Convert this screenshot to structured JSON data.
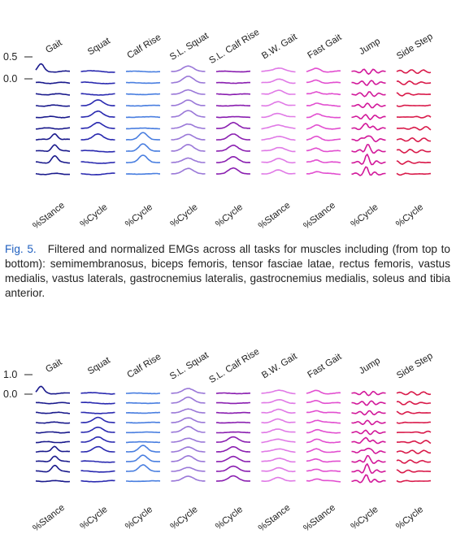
{
  "caption": {
    "label": "Fig. 5.",
    "text": "Filtered and normalized EMGs across all tasks for muscles including (from top to bottom): semimembranosus, biceps femoris, tensor fasciae latae, rectus femoris, vastus medialis, vastus laterals, gastrocnemius lateralis, gastrocnemius medialis, soleus and tibia anterior."
  },
  "chart_data": [
    {
      "type": "line",
      "panel": "top",
      "y_scale_labels": [
        "0.5",
        "0.0"
      ],
      "row_count": 10,
      "columns": [
        {
          "task": "Gait",
          "xlabel": "%Stance",
          "color": "#1a1a8c"
        },
        {
          "task": "Squat",
          "xlabel": "%Cycle",
          "color": "#2a2ab0"
        },
        {
          "task": "Calf Rise",
          "xlabel": "%Cycle",
          "color": "#4a7fe0"
        },
        {
          "task": "S.L. Squat",
          "xlabel": "%Cycle",
          "color": "#9a78d8"
        },
        {
          "task": "S.L. Calf Rise",
          "xlabel": "%Cycle",
          "color": "#8a1fb0"
        },
        {
          "task": "B.W. Gait",
          "xlabel": "%Stance",
          "color": "#e07ae6"
        },
        {
          "task": "Fast Gait",
          "xlabel": "%Stance",
          "color": "#e24fd0"
        },
        {
          "task": "Jump",
          "xlabel": "%Cycle",
          "color": "#d2189a"
        },
        {
          "task": "Side Step",
          "xlabel": "%Cycle",
          "color": "#d91a4a"
        }
      ]
    },
    {
      "type": "line",
      "panel": "bottom",
      "y_scale_labels": [
        "1.0",
        "0.0"
      ],
      "row_count": 10,
      "columns": [
        {
          "task": "Gait",
          "xlabel": "%Stance",
          "color": "#1a1a8c"
        },
        {
          "task": "Squat",
          "xlabel": "%Cycle",
          "color": "#2a2ab0"
        },
        {
          "task": "Calf Rise",
          "xlabel": "%Cycle",
          "color": "#4a7fe0"
        },
        {
          "task": "S.L. Squat",
          "xlabel": "%Cycle",
          "color": "#9a78d8"
        },
        {
          "task": "S.L. Calf Rise",
          "xlabel": "%Cycle",
          "color": "#8a1fb0"
        },
        {
          "task": "B.W. Gait",
          "xlabel": "%Stance",
          "color": "#e07ae6"
        },
        {
          "task": "Fast Gait",
          "xlabel": "%Stance",
          "color": "#e24fd0"
        },
        {
          "task": "Jump",
          "xlabel": "%Cycle",
          "color": "#d2189a"
        },
        {
          "task": "Side Step",
          "xlabel": "%Cycle",
          "color": "#d91a4a"
        }
      ]
    }
  ]
}
